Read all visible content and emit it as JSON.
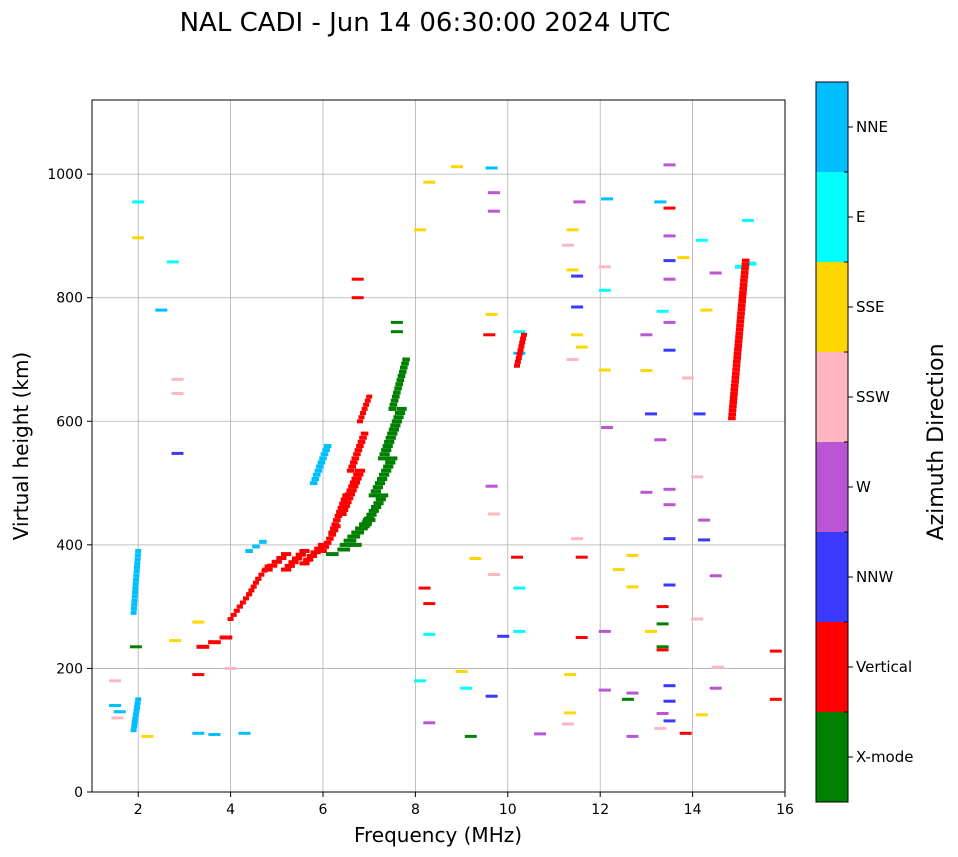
{
  "chart_data": {
    "type": "scatter",
    "title": "NAL CADI - Jun 14 06:30:00 2024 UTC",
    "xlabel": "Frequency (MHz)",
    "ylabel": "Virtual height (km)",
    "xlim": [
      1,
      16
    ],
    "ylim": [
      0,
      1120
    ],
    "xticks": [
      2,
      4,
      6,
      8,
      10,
      12,
      14,
      16
    ],
    "yticks": [
      0,
      200,
      400,
      600,
      800,
      1000
    ],
    "grid": true,
    "colorbar": {
      "title": "Azimuth Direction",
      "categories": [
        {
          "name": "NNE",
          "color": "#00bfff"
        },
        {
          "name": "E",
          "color": "#00ffff"
        },
        {
          "name": "SSE",
          "color": "#ffd700"
        },
        {
          "name": "SSW",
          "color": "#ffb6c1"
        },
        {
          "name": "W",
          "color": "#ba55d3"
        },
        {
          "name": "NNW",
          "color": "#3a3aff"
        },
        {
          "name": "Vertical",
          "color": "#ff0000"
        },
        {
          "name": "X-mode",
          "color": "#008000"
        }
      ]
    },
    "series": [
      {
        "name": "Vertical",
        "segments": [
          [
            4.0,
            280,
            4.2,
            300
          ],
          [
            4.2,
            300,
            4.4,
            320
          ],
          [
            4.4,
            320,
            4.6,
            345
          ],
          [
            4.6,
            345,
            4.8,
            365
          ],
          [
            4.8,
            360,
            5.2,
            385
          ],
          [
            5.2,
            360,
            5.6,
            390
          ],
          [
            5.6,
            370,
            6.0,
            400
          ],
          [
            6.0,
            390,
            6.3,
            430
          ],
          [
            6.2,
            420,
            6.5,
            480
          ],
          [
            6.4,
            450,
            6.8,
            520
          ],
          [
            6.6,
            520,
            6.9,
            580
          ],
          [
            6.8,
            600,
            7.0,
            640
          ],
          [
            3.4,
            235,
            3.9,
            250
          ],
          [
            14.85,
            605,
            15.15,
            860
          ],
          [
            10.2,
            690,
            10.35,
            740
          ]
        ],
        "points": [
          [
            3.3,
            190
          ],
          [
            6.75,
            830
          ],
          [
            6.75,
            800
          ],
          [
            10.2,
            380
          ],
          [
            11.6,
            380
          ],
          [
            11.6,
            250
          ],
          [
            9.6,
            740
          ],
          [
            13.35,
            300
          ],
          [
            13.35,
            230
          ],
          [
            13.5,
            945
          ],
          [
            13.85,
            95
          ],
          [
            15.8,
            228
          ],
          [
            15.8,
            150
          ],
          [
            8.2,
            330
          ],
          [
            8.3,
            305
          ]
        ]
      },
      {
        "name": "X-mode",
        "segments": [
          [
            6.2,
            385,
            6.7,
            400
          ],
          [
            6.5,
            400,
            7.0,
            440
          ],
          [
            6.9,
            430,
            7.3,
            480
          ],
          [
            7.1,
            480,
            7.5,
            540
          ],
          [
            7.3,
            540,
            7.7,
            620
          ],
          [
            7.5,
            620,
            7.8,
            700
          ]
        ],
        "points": [
          [
            7.6,
            760
          ],
          [
            7.6,
            745
          ],
          [
            1.95,
            235
          ],
          [
            9.2,
            90
          ],
          [
            12.6,
            150
          ],
          [
            13.35,
            272
          ],
          [
            13.35,
            235
          ]
        ]
      },
      {
        "name": "NNE",
        "segments": [
          [
            1.9,
            290,
            2.0,
            390
          ],
          [
            4.4,
            390,
            4.7,
            405
          ],
          [
            5.8,
            500,
            6.1,
            560
          ],
          [
            1.9,
            100,
            2.0,
            150
          ]
        ],
        "points": [
          [
            1.5,
            140
          ],
          [
            1.6,
            130
          ],
          [
            2.5,
            780
          ],
          [
            4.3,
            95
          ],
          [
            3.65,
            93
          ],
          [
            3.3,
            95
          ],
          [
            9.65,
            1010
          ],
          [
            10.25,
            710
          ],
          [
            12.15,
            960
          ],
          [
            13.3,
            955
          ]
        ]
      },
      {
        "name": "E",
        "segments": [
          [
            15.0,
            850,
            15.3,
            855
          ]
        ],
        "points": [
          [
            2.0,
            955
          ],
          [
            2.75,
            858
          ],
          [
            10.25,
            745
          ],
          [
            10.25,
            330
          ],
          [
            10.25,
            260
          ],
          [
            12.1,
            812
          ],
          [
            13.35,
            778
          ],
          [
            14.2,
            893
          ],
          [
            15.2,
            925
          ],
          [
            8.1,
            180
          ],
          [
            8.3,
            255
          ],
          [
            9.1,
            168
          ]
        ]
      },
      {
        "name": "SSE",
        "segments": [],
        "points": [
          [
            2.0,
            897
          ],
          [
            3.3,
            275
          ],
          [
            8.1,
            910
          ],
          [
            8.3,
            987
          ],
          [
            8.9,
            1012
          ],
          [
            9.65,
            773
          ],
          [
            11.4,
            910
          ],
          [
            11.4,
            845
          ],
          [
            11.5,
            740
          ],
          [
            11.6,
            720
          ],
          [
            12.1,
            683
          ],
          [
            12.4,
            360
          ],
          [
            12.7,
            383
          ],
          [
            12.7,
            332
          ],
          [
            13.0,
            682
          ],
          [
            13.1,
            260
          ],
          [
            13.8,
            865
          ],
          [
            14.3,
            780
          ],
          [
            14.2,
            125
          ],
          [
            11.35,
            190
          ],
          [
            11.35,
            128
          ],
          [
            9.0,
            195
          ],
          [
            9.3,
            378
          ],
          [
            2.2,
            90
          ],
          [
            2.8,
            245
          ]
        ]
      },
      {
        "name": "SSW",
        "segments": [],
        "points": [
          [
            1.5,
            180
          ],
          [
            1.55,
            120
          ],
          [
            2.85,
            668
          ],
          [
            2.85,
            645
          ],
          [
            11.3,
            885
          ],
          [
            11.4,
            700
          ],
          [
            11.5,
            410
          ],
          [
            12.1,
            850
          ],
          [
            13.9,
            670
          ],
          [
            14.1,
            510
          ],
          [
            14.1,
            280
          ],
          [
            14.55,
            202
          ],
          [
            9.7,
            450
          ],
          [
            9.7,
            352
          ],
          [
            13.3,
            103
          ],
          [
            11.3,
            110
          ],
          [
            4.0,
            200
          ]
        ]
      },
      {
        "name": "W",
        "segments": [],
        "points": [
          [
            9.7,
            970
          ],
          [
            9.7,
            940
          ],
          [
            9.65,
            495
          ],
          [
            11.55,
            955
          ],
          [
            12.15,
            590
          ],
          [
            12.1,
            260
          ],
          [
            12.1,
            165
          ],
          [
            12.7,
            160
          ],
          [
            12.7,
            90
          ],
          [
            13.0,
            740
          ],
          [
            13.0,
            485
          ],
          [
            13.3,
            570
          ],
          [
            13.5,
            1015
          ],
          [
            13.5,
            900
          ],
          [
            13.5,
            830
          ],
          [
            13.5,
            760
          ],
          [
            13.5,
            490
          ],
          [
            13.5,
            465
          ],
          [
            14.25,
            440
          ],
          [
            14.5,
            840
          ],
          [
            14.5,
            350
          ],
          [
            14.5,
            168
          ],
          [
            8.3,
            112
          ],
          [
            10.7,
            94
          ],
          [
            13.35,
            127
          ]
        ]
      },
      {
        "name": "NNW",
        "segments": [],
        "points": [
          [
            2.85,
            548
          ],
          [
            9.9,
            252
          ],
          [
            9.65,
            155
          ],
          [
            11.5,
            835
          ],
          [
            11.5,
            785
          ],
          [
            13.1,
            612
          ],
          [
            13.5,
            860
          ],
          [
            13.5,
            715
          ],
          [
            13.5,
            410
          ],
          [
            13.5,
            335
          ],
          [
            13.5,
            115
          ],
          [
            14.15,
            612
          ],
          [
            14.25,
            408
          ],
          [
            13.5,
            172
          ],
          [
            13.5,
            147
          ]
        ]
      }
    ]
  }
}
